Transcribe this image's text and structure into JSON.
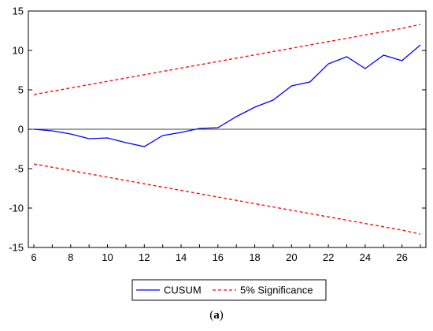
{
  "chart_data": {
    "type": "line",
    "x": [
      6,
      7,
      8,
      9,
      10,
      11,
      12,
      13,
      14,
      15,
      16,
      17,
      18,
      19,
      20,
      21,
      22,
      23,
      24,
      25,
      26,
      27
    ],
    "xlim": [
      5.7,
      27.3
    ],
    "ylim": [
      -15,
      15
    ],
    "x_ticks": [
      "6",
      "8",
      "10",
      "12",
      "14",
      "16",
      "18",
      "20",
      "22",
      "24",
      "26"
    ],
    "y_ticks": [
      "15",
      "10",
      "5",
      "0",
      "-5",
      "-10",
      "-15"
    ],
    "zero_line": true,
    "grid": false,
    "legend_position": "bottom",
    "series": [
      {
        "name": "CUSUM",
        "color": "#0000ff",
        "style": "solid",
        "values": [
          0.0,
          -0.2,
          -0.6,
          -1.2,
          -1.1,
          -1.7,
          -2.2,
          -0.8,
          -0.4,
          0.1,
          0.2,
          1.6,
          2.8,
          3.7,
          5.5,
          6.0,
          8.3,
          9.2,
          7.7,
          9.4,
          8.7,
          10.7
        ]
      },
      {
        "name": "5% Significance",
        "color": "#ff0000",
        "style": "dashed",
        "values": [
          4.4,
          4.82,
          5.24,
          5.66,
          6.08,
          6.5,
          6.92,
          7.34,
          7.76,
          8.18,
          8.6,
          9.02,
          9.44,
          9.86,
          10.28,
          10.7,
          11.12,
          11.54,
          11.96,
          12.38,
          12.8,
          13.3
        ]
      },
      {
        "name": "",
        "color": "#ff0000",
        "style": "dashed",
        "values": [
          -4.4,
          -4.82,
          -5.24,
          -5.66,
          -6.08,
          -6.5,
          -6.92,
          -7.34,
          -7.76,
          -8.18,
          -8.6,
          -9.02,
          -9.44,
          -9.86,
          -10.28,
          -10.7,
          -11.12,
          -11.54,
          -11.96,
          -12.38,
          -12.8,
          -13.3
        ]
      }
    ],
    "legend": [
      {
        "label": "CUSUM",
        "color": "#0000ff",
        "style": "solid"
      },
      {
        "label": "5% Significance",
        "color": "#ff0000",
        "style": "dashed"
      }
    ]
  },
  "caption": {
    "open": "(",
    "letter": "a",
    "close": ")"
  }
}
